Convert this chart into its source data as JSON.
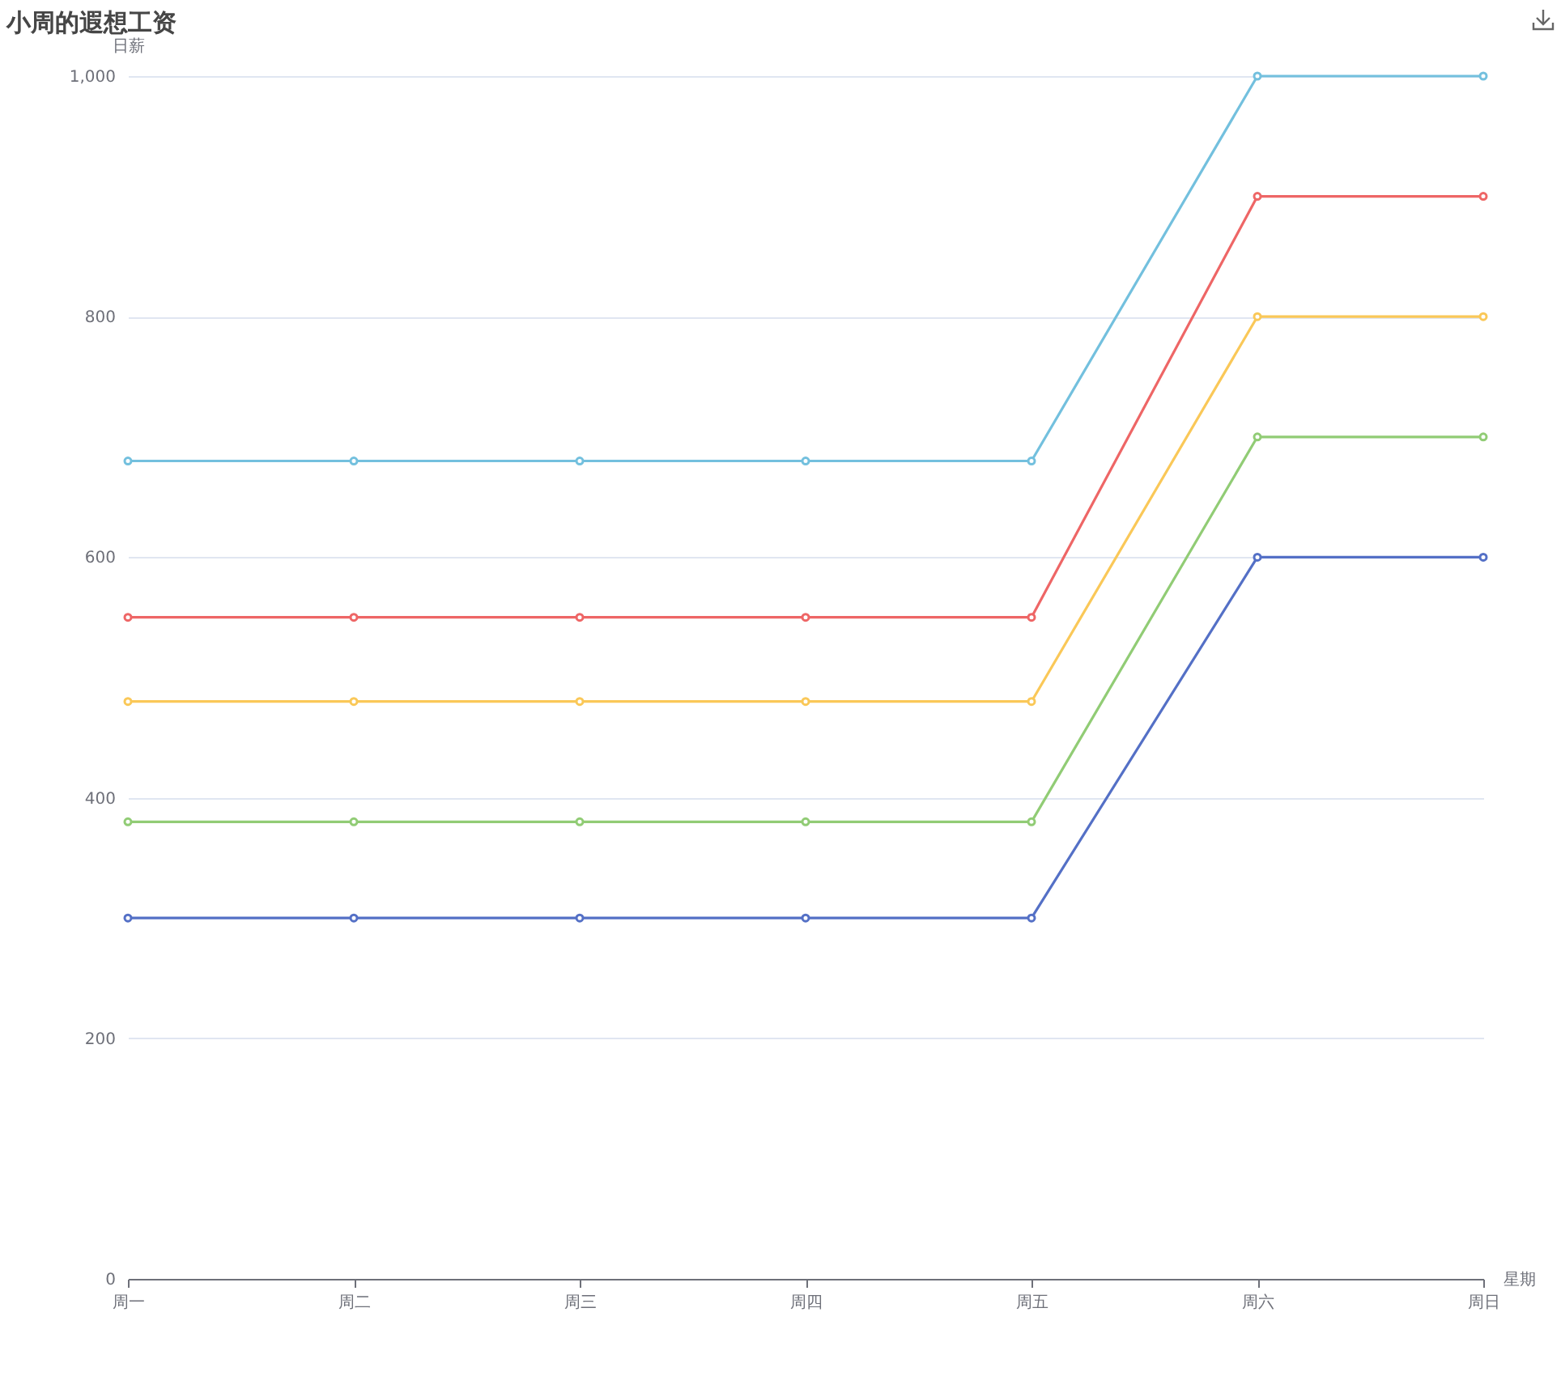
{
  "chart_data": {
    "type": "line",
    "title": "小周的遐想工资",
    "xlabel": "星期",
    "ylabel": "日薪",
    "categories": [
      "周一",
      "周二",
      "周三",
      "周四",
      "周五",
      "周六",
      "周日"
    ],
    "series": [
      {
        "color": "#5470c6",
        "values": [
          300,
          300,
          300,
          300,
          300,
          600,
          600
        ]
      },
      {
        "color": "#91cc75",
        "values": [
          380,
          380,
          380,
          380,
          380,
          700,
          700
        ]
      },
      {
        "color": "#fac858",
        "values": [
          480,
          480,
          480,
          480,
          480,
          800,
          800
        ]
      },
      {
        "color": "#ee6666",
        "values": [
          550,
          550,
          550,
          550,
          550,
          900,
          900
        ]
      },
      {
        "color": "#73c0de",
        "values": [
          680,
          680,
          680,
          680,
          680,
          1000,
          1000
        ]
      }
    ],
    "ylim": [
      0,
      1000
    ],
    "yticks": [
      0,
      200,
      400,
      600,
      800,
      {
        "value": 1000,
        "label": "1,000"
      }
    ],
    "grid": "y",
    "marker": "circle",
    "line_style": "solid"
  }
}
